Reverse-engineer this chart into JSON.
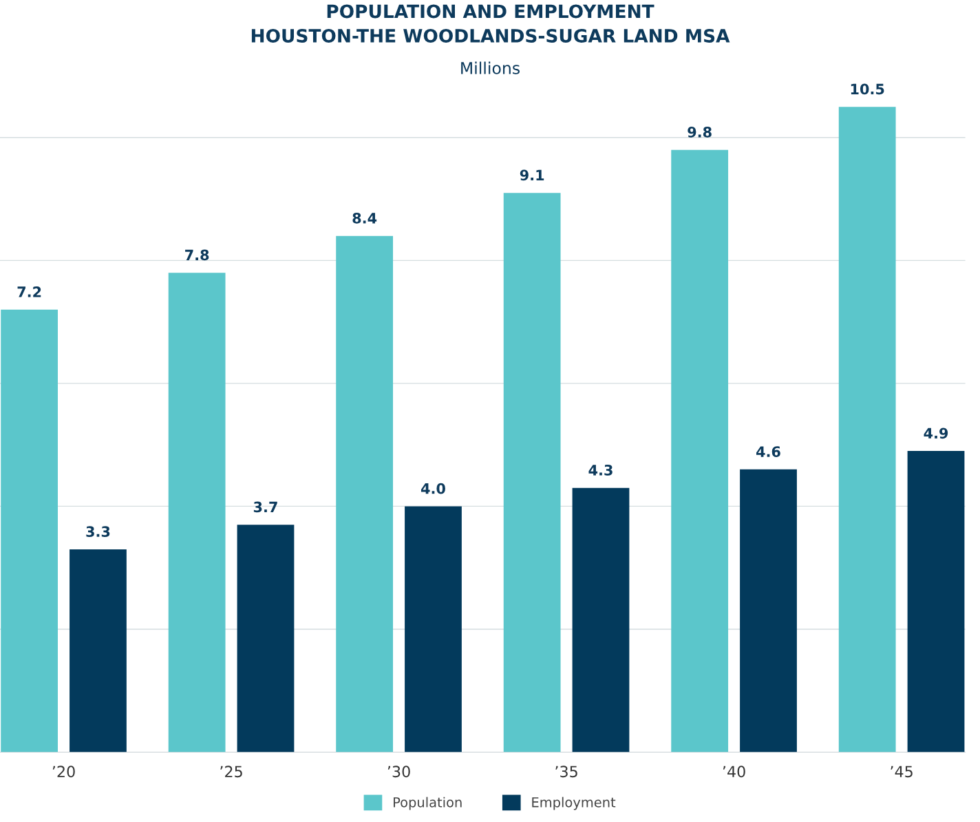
{
  "chart_data": {
    "type": "bar",
    "title": "POPULATION AND EMPLOYMENT\nHOUSTON-THE WOODLANDS-SUGAR LAND MSA",
    "subtitle": "Millions",
    "categories": [
      "’20",
      "’25",
      "’30",
      "’35",
      "’40",
      "’45"
    ],
    "series": [
      {
        "name": "Population",
        "color": "#5bc6cb",
        "values": [
          7.2,
          7.8,
          8.4,
          9.1,
          9.8,
          10.5
        ],
        "value_labels": [
          "7.2",
          "7.8",
          "8.4",
          "9.1",
          "9.8",
          "10.5"
        ]
      },
      {
        "name": "Employment",
        "color": "#033a5c",
        "values": [
          3.3,
          3.7,
          4.0,
          4.3,
          4.6,
          4.9
        ],
        "value_labels": [
          "3.3",
          "3.7",
          "4.0",
          "4.3",
          "4.6",
          "4.9"
        ]
      }
    ],
    "yticks": [
      {
        "value": 2,
        "label": null
      },
      {
        "value": 4,
        "label": null
      },
      {
        "value": 6,
        "label": null
      },
      {
        "value": 8,
        "label": null
      },
      {
        "value": 10,
        "label": null
      }
    ],
    "tick_labels": "x",
    "grid": "y",
    "legend": "bottom"
  }
}
